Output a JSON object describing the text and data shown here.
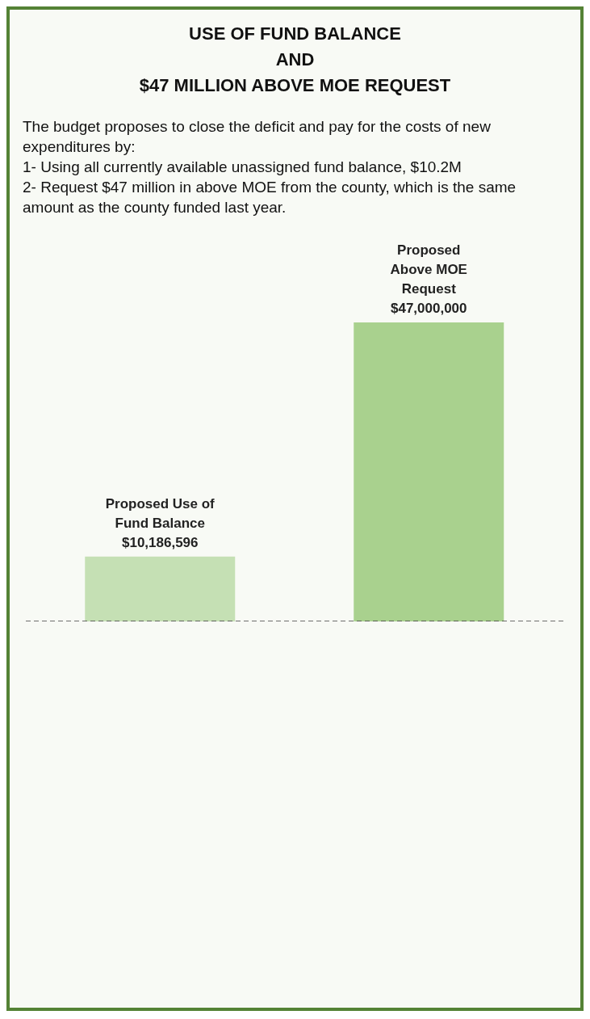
{
  "chart_data": {
    "type": "bar",
    "title": "USE OF FUND BALANCE\nAND\n$47 MILLION ABOVE MOE REQUEST",
    "annotations": [
      "The budget proposes to close the deficit and pay for the costs of new expenditures by:\n1- Using all currently available unassigned fund balance, $10.2M\n2- Request $47 million in above MOE from the county, which is the same amount as the county funded last year."
    ],
    "categories": [
      null,
      null
    ],
    "values": [
      10186596,
      47000000
    ],
    "value_labels": [
      "Proposed Use of\nFund Balance\n$10,186,596",
      "Proposed\nAbove MOE\nRequest\n$47,000,000"
    ],
    "colors": [
      "#c5e0b4",
      "#a9d18e"
    ],
    "ref_lines": [
      {
        "axis": "y",
        "value": 0,
        "color": "#404040",
        "line_style": "dashed"
      }
    ]
  }
}
